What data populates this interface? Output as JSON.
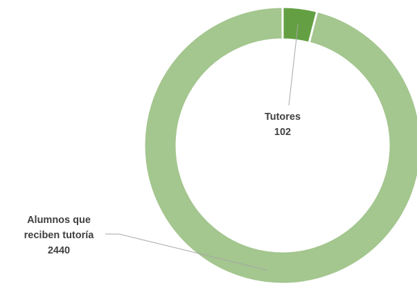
{
  "chart_data": {
    "type": "donut",
    "categories": [
      "Tutores",
      "Alumnos que reciben tutoría"
    ],
    "values": [
      102,
      2440
    ],
    "colors": [
      "#64a043",
      "#a4c68f"
    ]
  }
}
